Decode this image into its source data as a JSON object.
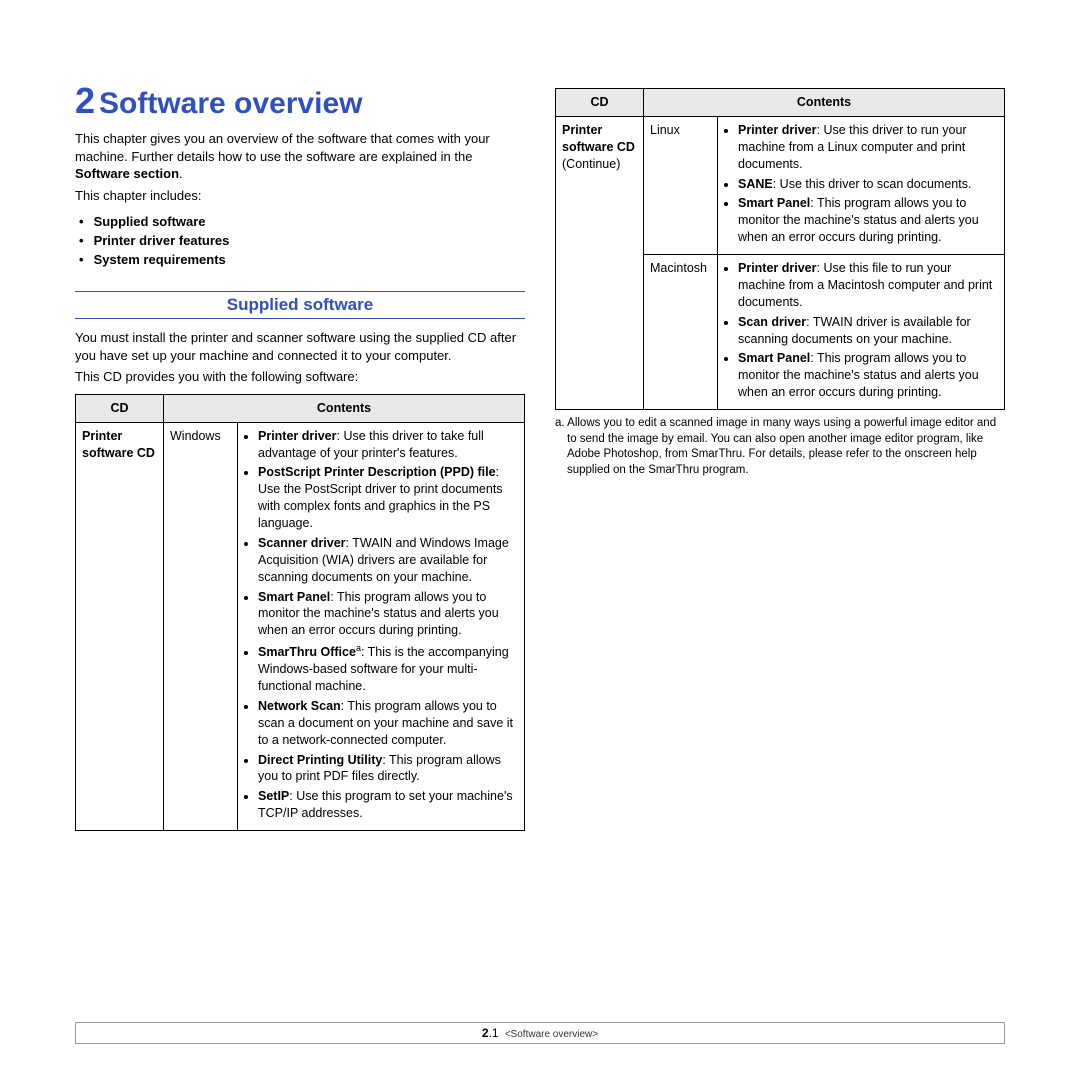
{
  "chapter": {
    "number": "2",
    "title": "Software overview",
    "intro1": "This chapter gives you an overview of the software that comes with your machine. Further details how to use the software are explained in the ",
    "intro1_bold": "Software section",
    "intro2": "This chapter includes:",
    "toc": [
      "Supplied software",
      "Printer driver features",
      "System requirements"
    ]
  },
  "section": {
    "heading": "Supplied software",
    "para1": "You must install the printer and scanner software using the supplied CD after you have set up your machine and connected it to your computer.",
    "para2": "This CD provides you with the following software:"
  },
  "table_headers": {
    "cd": "CD",
    "contents": "Contents"
  },
  "left_table": {
    "cd_label": "Printer software CD",
    "os": "Windows",
    "items": [
      {
        "b": "Printer driver",
        "t": ": Use this driver to take full advantage of your printer's features."
      },
      {
        "b": "PostScript Printer Description (PPD) file",
        "t": ": Use the PostScript driver to print documents with complex fonts and graphics in the PS language."
      },
      {
        "b": "Scanner driver",
        "t": ": TWAIN and Windows Image Acquisition (WIA) drivers are available for scanning documents on your machine."
      },
      {
        "b": "Smart Panel",
        "t": ": This program allows you to monitor the machine's status and alerts you when an error occurs during printing."
      },
      {
        "b": "SmarThru Office",
        "sup": "a",
        "t": ": This is the accompanying Windows-based software for your multi-functional machine."
      },
      {
        "b": "Network Scan",
        "t": ": This program allows you to scan a document on your machine and save it to a network-connected computer."
      },
      {
        "b": "Direct Printing Utility",
        "t": ": This program allows you to print PDF files directly."
      },
      {
        "b": "SetIP",
        "t": ": Use this program to set your machine's TCP/IP addresses."
      }
    ]
  },
  "right_table": {
    "cd_label1": "Printer software CD",
    "cd_label2": "(Continue)",
    "rows": [
      {
        "os": "Linux",
        "items": [
          {
            "b": "Printer driver",
            "t": ": Use this driver to run your machine from a Linux computer and print documents."
          },
          {
            "b": "SANE",
            "t": ": Use this driver to scan documents."
          },
          {
            "b": "Smart Panel",
            "t": ": This program allows you to monitor the machine's status and alerts you when an error occurs during printing."
          }
        ]
      },
      {
        "os": "Macintosh",
        "items": [
          {
            "b": "Printer driver",
            "t": ": Use this file to run your machine from a Macintosh computer and print documents."
          },
          {
            "b": "Scan driver",
            "t": ": TWAIN driver is available for scanning documents on your machine."
          },
          {
            "b": "Smart Panel",
            "t": ": This program allows you to monitor the machine's status and alerts you when an error occurs during printing."
          }
        ]
      }
    ]
  },
  "footnote": {
    "marker": "a.",
    "text": "Allows you to edit a scanned image in many ways using a powerful image editor and to send the image by email. You can also open another image editor program, like Adobe Photoshop, from SmarThru. For details, please refer to the onscreen help supplied on the SmarThru program."
  },
  "footer": {
    "pg_main": "2",
    "pg_sub": ".1",
    "label": "<Software overview>"
  }
}
